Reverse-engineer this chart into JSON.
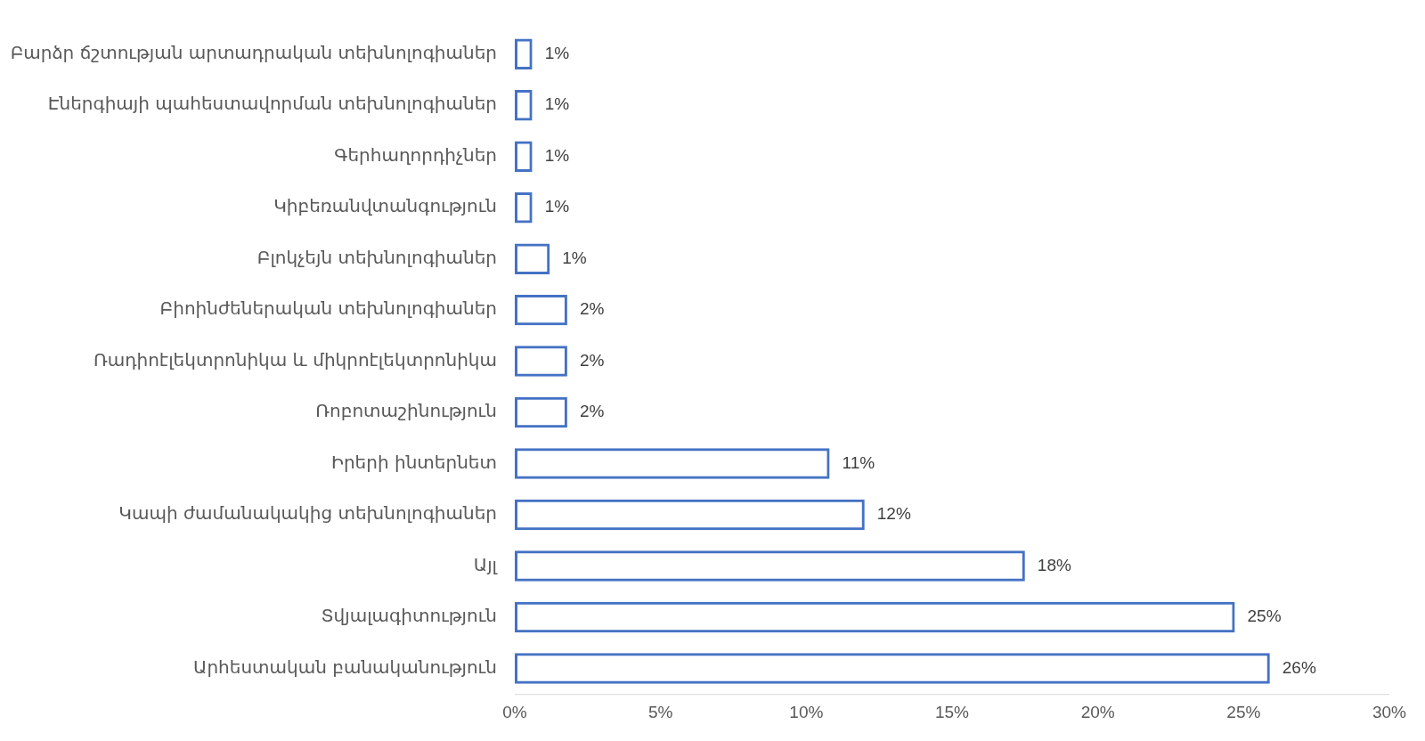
{
  "chart_data": {
    "type": "bar",
    "orientation": "horizontal",
    "categories": [
      "Բարձր ճշտության արտադրական տեխնոլոգիաներ",
      "Էներգիայի պահեստավորման տեխնոլոգիաներ",
      "Գերհաղորդիչներ",
      "Կիբեռանվտանգություն",
      "Բլոկչեյն տեխնոլոգիաներ",
      "Բիոինժեներական տեխնոլոգիաներ",
      "Ռադիոէլեկտրոնիկա և միկրոէլեկտրոնիկա",
      "Ռոբոտաշինություն",
      "Իրերի ինտերնետ",
      "Կապի ժամանակակից տեխնոլոգիաներ",
      "Այլ",
      "Տվյալագիտություն",
      "Արհեստական բանականություն"
    ],
    "values": [
      0.6,
      0.6,
      0.6,
      0.6,
      1.2,
      1.8,
      1.8,
      1.8,
      10.8,
      12.0,
      17.5,
      24.7,
      25.9
    ],
    "value_labels": [
      "1%",
      "1%",
      "1%",
      "1%",
      "1%",
      "2%",
      "2%",
      "2%",
      "11%",
      "12%",
      "18%",
      "25%",
      "26%"
    ],
    "color": "#4472c4",
    "xlim": [
      0,
      30
    ],
    "xticks": [
      {
        "value": 0,
        "label": "0%"
      },
      {
        "value": 5,
        "label": "5%"
      },
      {
        "value": 10,
        "label": "10%"
      },
      {
        "value": 15,
        "label": "15%"
      },
      {
        "value": 20,
        "label": "20%"
      },
      {
        "value": 25,
        "label": "25%"
      },
      {
        "value": 30,
        "label": "30%"
      }
    ],
    "grid": false,
    "legend": false
  }
}
